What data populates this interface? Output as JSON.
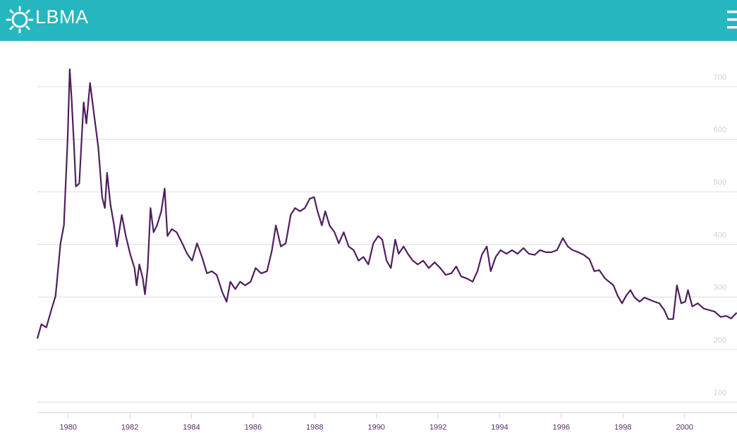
{
  "header": {
    "logo_text": "LBMA"
  },
  "chart_data": {
    "type": "line",
    "x": [
      1979.0,
      1979.13,
      1979.29,
      1979.45,
      1979.59,
      1979.75,
      1979.86,
      1979.98,
      1980.05,
      1980.11,
      1980.18,
      1980.25,
      1980.36,
      1980.5,
      1980.59,
      1980.71,
      1980.8,
      1980.89,
      1980.98,
      1981.1,
      1981.19,
      1981.26,
      1981.37,
      1981.49,
      1981.58,
      1981.74,
      1981.87,
      1982.01,
      1982.15,
      1982.22,
      1982.31,
      1982.42,
      1982.49,
      1982.58,
      1982.67,
      1982.77,
      1982.88,
      1983.02,
      1983.13,
      1983.22,
      1983.36,
      1983.52,
      1983.7,
      1983.86,
      1984.02,
      1984.18,
      1984.34,
      1984.5,
      1984.66,
      1984.82,
      1985.0,
      1985.14,
      1985.26,
      1985.42,
      1985.58,
      1985.74,
      1985.92,
      1986.08,
      1986.26,
      1986.45,
      1986.61,
      1986.74,
      1986.9,
      1987.06,
      1987.22,
      1987.36,
      1987.52,
      1987.68,
      1987.84,
      1987.98,
      1988.09,
      1988.23,
      1988.34,
      1988.48,
      1988.64,
      1988.78,
      1988.94,
      1989.1,
      1989.26,
      1989.42,
      1989.58,
      1989.74,
      1989.9,
      1990.06,
      1990.19,
      1990.33,
      1990.47,
      1990.61,
      1990.72,
      1990.88,
      1991.02,
      1991.18,
      1991.34,
      1991.52,
      1991.7,
      1991.89,
      1992.07,
      1992.25,
      1992.43,
      1992.59,
      1992.75,
      1992.94,
      1993.12,
      1993.28,
      1993.42,
      1993.58,
      1993.71,
      1993.87,
      1994.03,
      1994.22,
      1994.4,
      1994.58,
      1994.77,
      1994.95,
      1995.13,
      1995.31,
      1995.5,
      1995.68,
      1995.86,
      1996.05,
      1996.21,
      1996.37,
      1996.55,
      1996.73,
      1996.91,
      1997.07,
      1997.23,
      1997.42,
      1997.55,
      1997.69,
      1997.83,
      1997.97,
      1998.1,
      1998.24,
      1998.38,
      1998.54,
      1998.7,
      1998.86,
      1999.02,
      1999.18,
      1999.34,
      1999.47,
      1999.63,
      1999.75,
      1999.89,
      2000.02,
      2000.11,
      2000.25,
      2000.43,
      2000.62,
      2000.8,
      2000.98,
      2001.17,
      2001.35,
      2001.51,
      2001.69
    ],
    "series": [
      {
        "color": "#4f1f5e",
        "values": [
          221,
          248,
          242,
          275,
          302,
          402,
          436,
          597,
          733,
          677,
          597,
          510,
          516,
          670,
          630,
          707,
          664,
          624,
          583,
          490,
          469,
          536,
          476,
          436,
          396,
          456,
          416,
          382,
          355,
          322,
          362,
          335,
          305,
          355,
          469,
          423,
          436,
          463,
          506,
          416,
          429,
          423,
          402,
          382,
          369,
          402,
          376,
          345,
          349,
          342,
          309,
          291,
          329,
          315,
          329,
          322,
          329,
          355,
          345,
          349,
          389,
          436,
          396,
          402,
          456,
          469,
          463,
          469,
          487,
          490,
          463,
          436,
          463,
          436,
          423,
          402,
          423,
          396,
          389,
          369,
          376,
          362,
          402,
          416,
          409,
          369,
          355,
          409,
          382,
          396,
          382,
          369,
          362,
          369,
          355,
          366,
          355,
          342,
          345,
          358,
          339,
          335,
          329,
          349,
          380,
          396,
          349,
          376,
          389,
          382,
          389,
          382,
          393,
          382,
          380,
          389,
          385,
          385,
          389,
          412,
          396,
          389,
          385,
          380,
          372,
          349,
          351,
          335,
          329,
          322,
          302,
          288,
          302,
          313,
          299,
          291,
          299,
          295,
          291,
          288,
          275,
          258,
          258,
          322,
          288,
          291,
          313,
          282,
          288,
          278,
          275,
          272,
          262,
          264,
          259,
          270
        ]
      }
    ],
    "xlim": [
      1979,
      2001.7
    ],
    "xticks": [
      1980,
      1982,
      1984,
      1986,
      1988,
      1990,
      1992,
      1994,
      1996,
      1998,
      2000
    ],
    "ylim": [
      80,
      740
    ],
    "yticks": [
      100,
      200,
      300,
      400,
      500,
      600,
      700
    ],
    "grid": true
  }
}
